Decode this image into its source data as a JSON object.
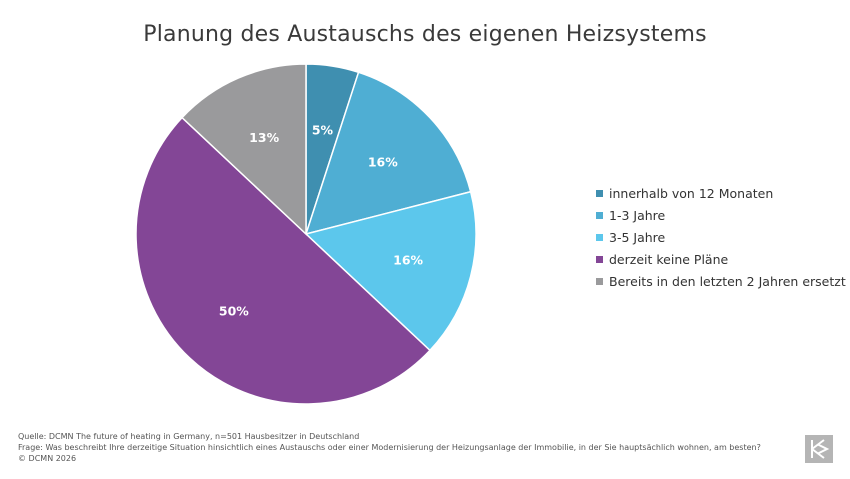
{
  "chart_data": {
    "type": "pie",
    "title": "Planung des Austauschs des eigenen Heizsystems",
    "slices": [
      {
        "label": "innerhalb von 12 Monaten",
        "value": 5,
        "display": "5%",
        "color": "#3F8FB0"
      },
      {
        "label": "1-3 Jahre",
        "value": 16,
        "display": "16%",
        "color": "#4FAED3"
      },
      {
        "label": "3-5 Jahre",
        "value": 16,
        "display": "16%",
        "color": "#5CC7EC"
      },
      {
        "label": "derzeit keine Pläne",
        "value": 50,
        "display": "50%",
        "color": "#834696"
      },
      {
        "label": "Bereits in den letzten 2 Jahren ersetzt",
        "value": 13,
        "display": "13%",
        "color": "#9A9A9C"
      }
    ],
    "legend": "right"
  },
  "footer": {
    "source": "Quelle: DCMN The future of heating in Germany, n=501 Hausbesitzer in Deutschland",
    "question": "Frage: Was beschreibt Ihre derzeitige Situation hinsichtlich eines Austauschs oder einer Modernisierung der Heizungsanlage der Immobilie, in der Sie hauptsächlich wohnen, am besten?",
    "copyright": "© DCMN 2026"
  },
  "logo": {
    "icon": "dcmn-logo-icon",
    "color": "#B5B5B5"
  }
}
